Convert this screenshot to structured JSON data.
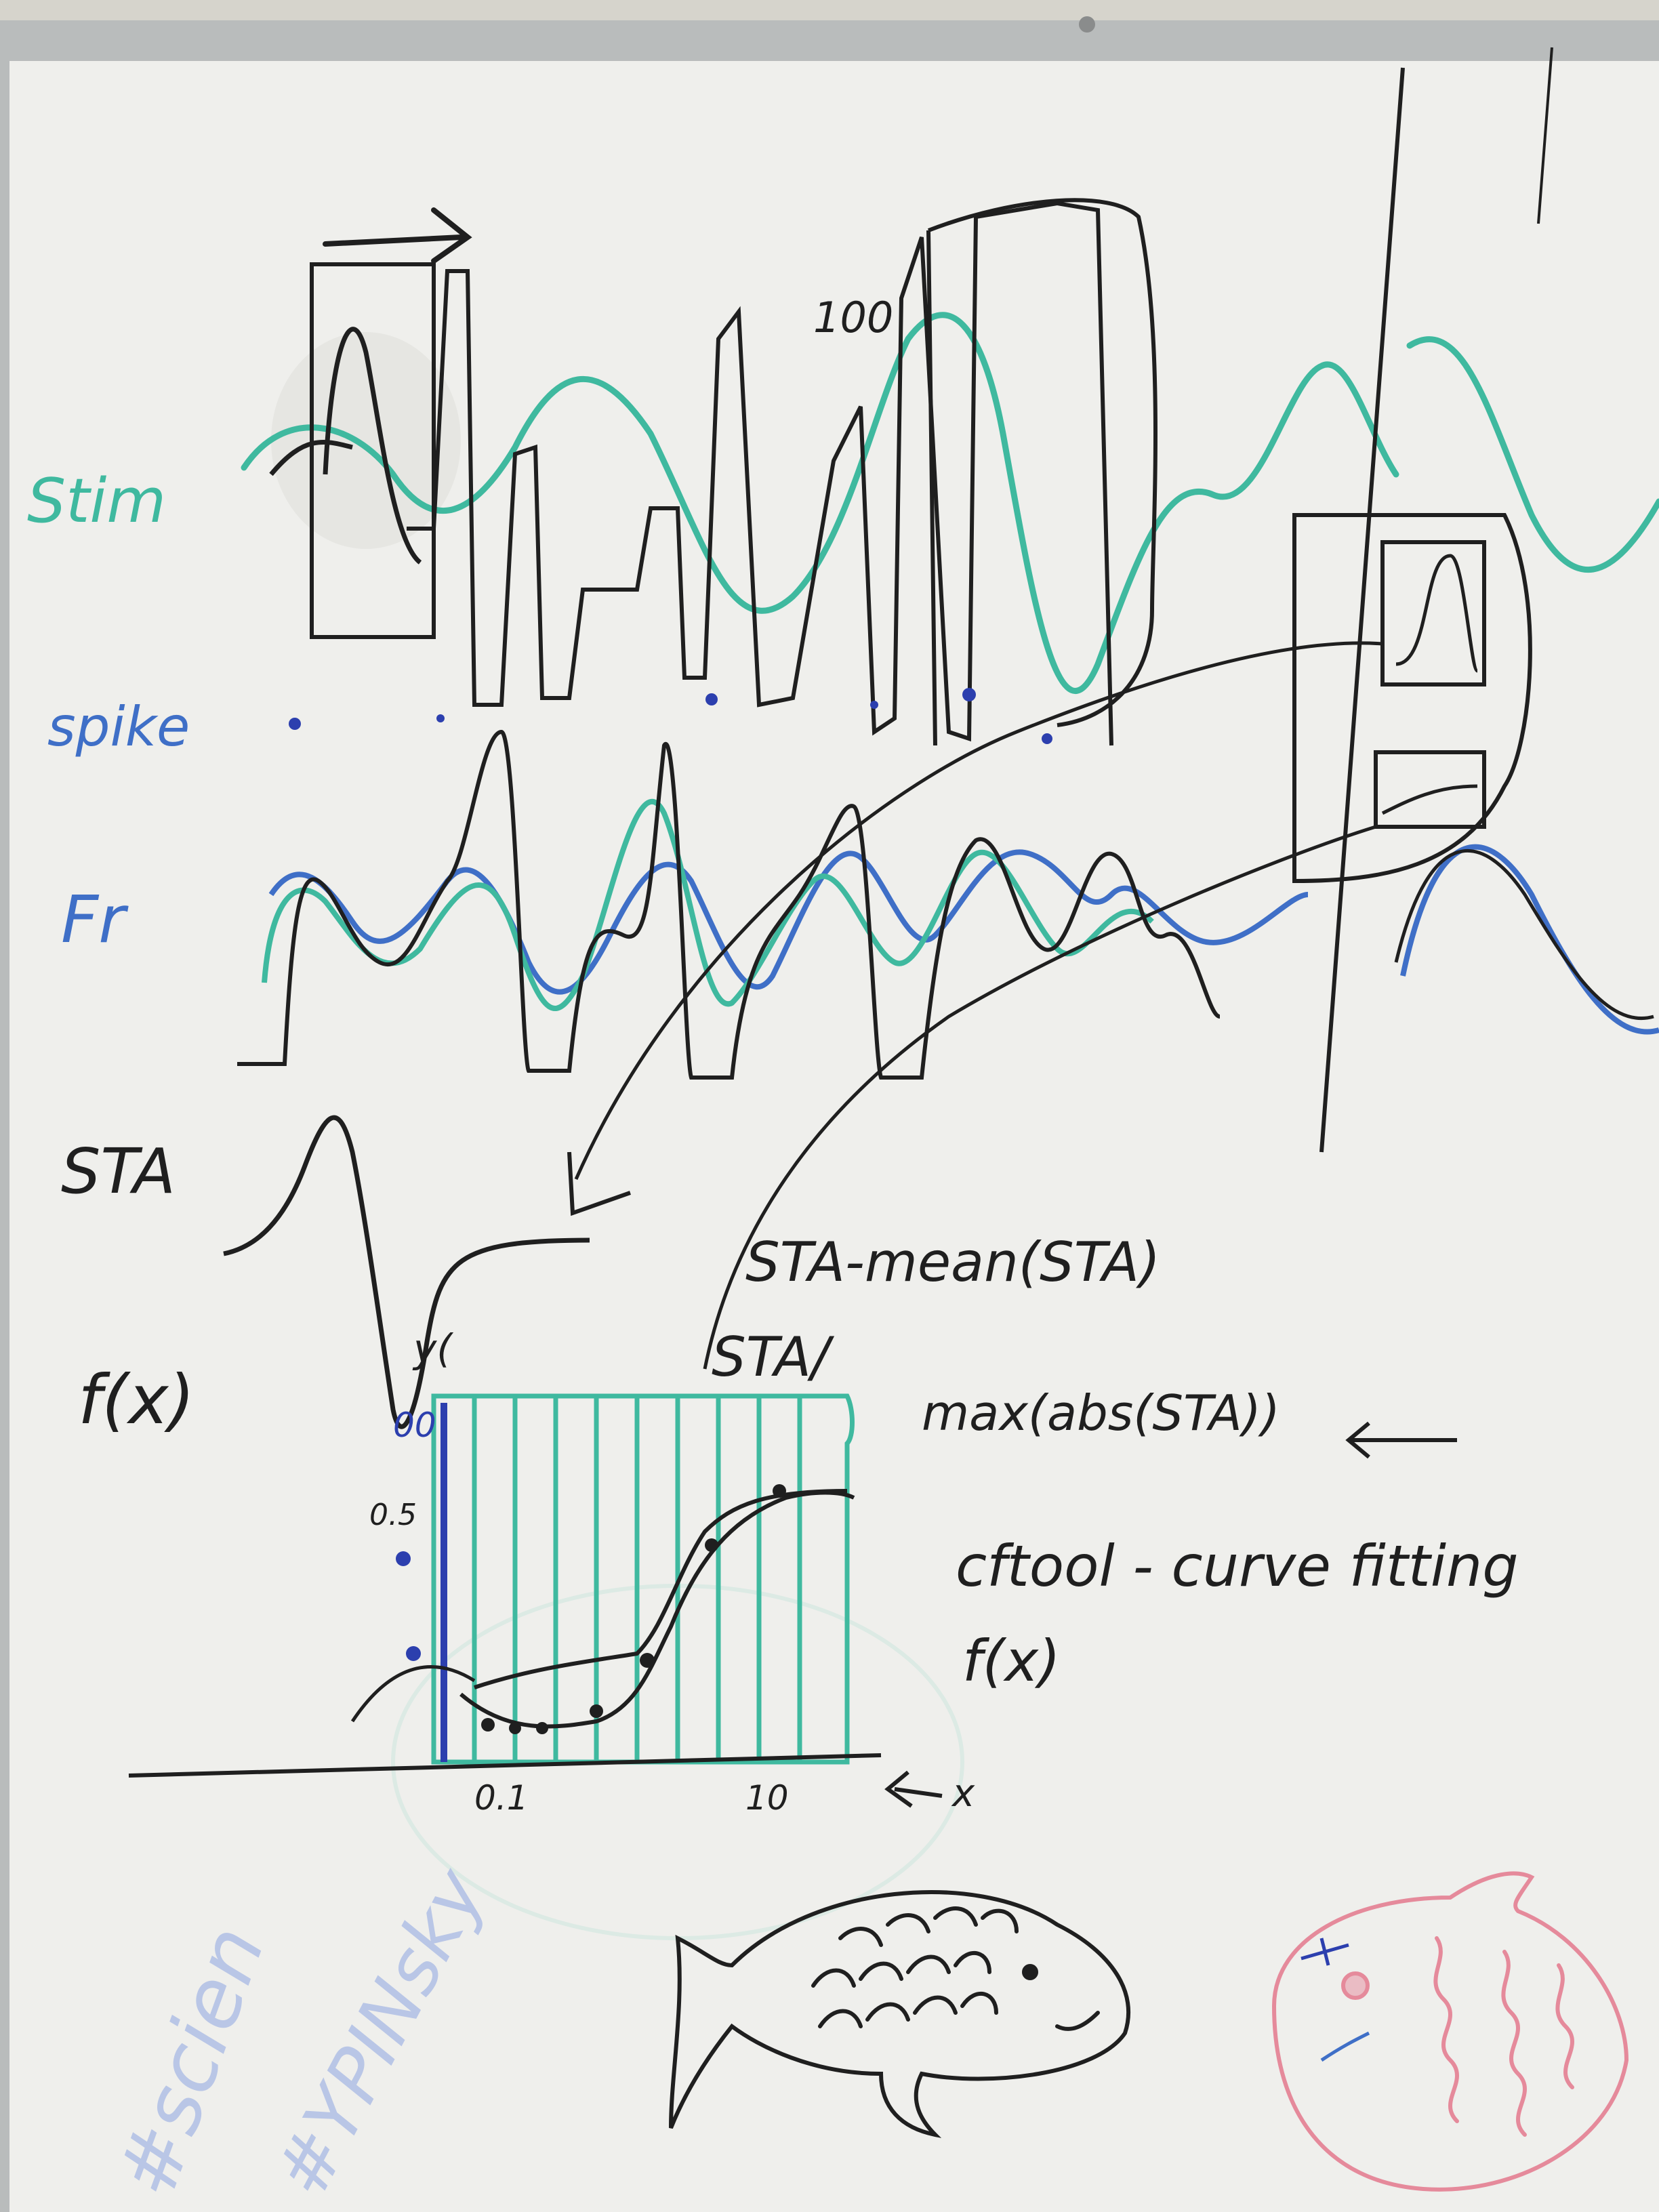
{
  "colors": {
    "board": "#efefec",
    "frame": "#b9bcbc",
    "black_marker": "#1f1f1f",
    "teal_marker": "#3fb99f",
    "blue_marker": "#3f6fc7",
    "dark_blue_marker": "#2c3fae",
    "pink_marker": "#e58a9b"
  },
  "labels": {
    "stim": "Stim",
    "spike": "spike",
    "fr": "Fr",
    "sta": "STA",
    "fx_left": "f(x)",
    "hundred": "100",
    "formula1": "STA-mean(STA)",
    "formula2": "STA/",
    "formula3": "max(abs(STA))",
    "cftool": "cftool - curve fitting",
    "fx_right": "f(x)",
    "y_axis": "y(",
    "tick_0_1": "0.1",
    "tick_10": "10",
    "x_axis": "x",
    "y_tick_top": "00",
    "y_tick_mid": "0.5",
    "hashtag_1": "#scien",
    "hashtag_2": "#YPINsky"
  },
  "icons": [
    "fish-drawing",
    "pink-fish-drawing"
  ]
}
